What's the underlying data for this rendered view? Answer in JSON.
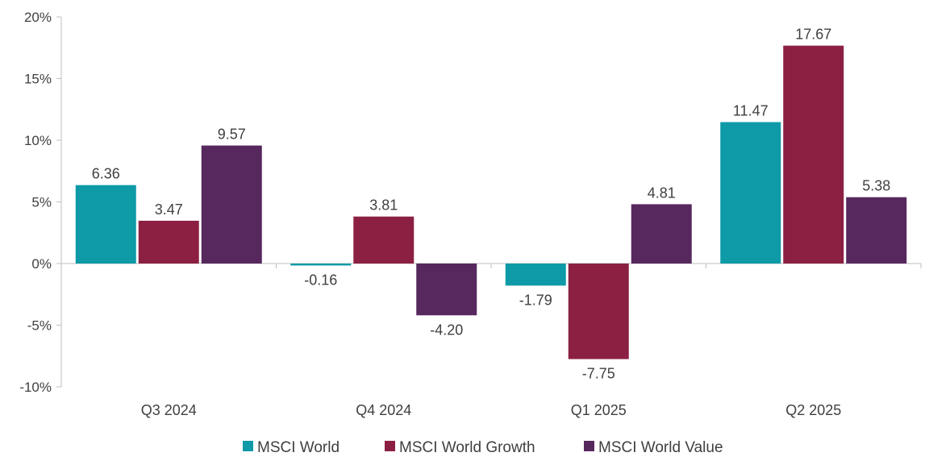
{
  "chart_data": {
    "type": "bar",
    "categories": [
      "Q3 2024",
      "Q4 2024",
      "Q1 2025",
      "Q2 2025"
    ],
    "series": [
      {
        "name": "MSCI World",
        "color": "#0E9AA7",
        "values": [
          6.36,
          -0.16,
          -1.79,
          11.47
        ],
        "labels": [
          "6.36",
          "-0.16",
          "-1.79",
          "11.47"
        ]
      },
      {
        "name": "MSCI World Growth",
        "color": "#8C2043",
        "values": [
          3.47,
          3.81,
          -7.75,
          17.67
        ],
        "labels": [
          "3.47",
          "3.81",
          "-7.75",
          "17.67"
        ]
      },
      {
        "name": "MSCI World Value",
        "color": "#57285E",
        "values": [
          9.57,
          -4.2,
          4.81,
          5.38
        ],
        "labels": [
          "9.57",
          "-4.20",
          "4.81",
          "5.38"
        ]
      }
    ],
    "ylim": [
      -10,
      20
    ],
    "yticks": [
      20,
      15,
      10,
      5,
      0,
      -5,
      -10
    ],
    "ytick_labels": [
      "20%",
      "15%",
      "10%",
      "5%",
      "0%",
      "-5%",
      "-10%"
    ],
    "legend_position": "bottom",
    "grid": false
  }
}
